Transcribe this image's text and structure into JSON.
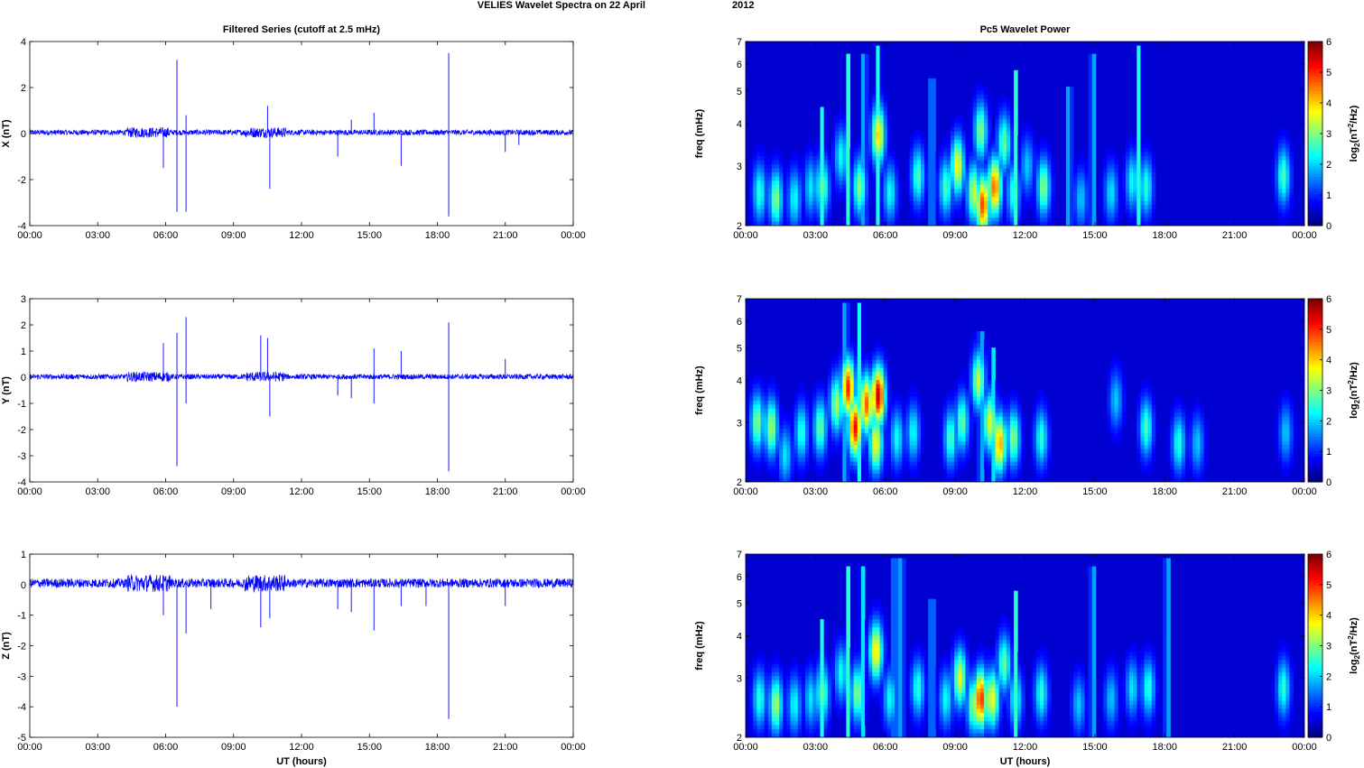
{
  "figure": {
    "suptitle_left": "VELIES Wavelet Spectra on 22 April",
    "suptitle_right": "2012"
  },
  "chart_data": [
    {
      "id": "x-series",
      "type": "line",
      "title": "Filtered Series (cutoff at 2.5 mHz)",
      "xlabel": "",
      "ylabel": "X (nT)",
      "xlim": [
        "00:00",
        "24:00"
      ],
      "ylim": [
        -4,
        4
      ],
      "xticks": [
        "00:00",
        "03:00",
        "06:00",
        "09:00",
        "12:00",
        "15:00",
        "18:00",
        "21:00",
        "00:00"
      ],
      "yticks": [
        4,
        2,
        0,
        -2,
        -4
      ],
      "color": "#0000ff",
      "background_noise_amplitude": 0.12,
      "spikes": [
        [
          5.9,
          -1.5
        ],
        [
          6.5,
          3.2
        ],
        [
          6.5,
          -3.4
        ],
        [
          6.9,
          0.8
        ],
        [
          6.9,
          -3.4
        ],
        [
          10.5,
          1.2
        ],
        [
          10.6,
          -2.4
        ],
        [
          13.6,
          -1.0
        ],
        [
          14.2,
          0.6
        ],
        [
          15.2,
          0.9
        ],
        [
          16.4,
          -1.4
        ],
        [
          18.5,
          3.5
        ],
        [
          18.5,
          -3.6
        ],
        [
          21.0,
          -0.8
        ],
        [
          21.6,
          -0.5
        ]
      ]
    },
    {
      "id": "y-series",
      "type": "line",
      "title": "",
      "xlabel": "",
      "ylabel": "Y (nT)",
      "xlim": [
        "00:00",
        "24:00"
      ],
      "ylim": [
        -4,
        3
      ],
      "xticks": [
        "00:00",
        "03:00",
        "06:00",
        "09:00",
        "12:00",
        "15:00",
        "18:00",
        "21:00",
        "00:00"
      ],
      "yticks": [
        3,
        2,
        1,
        0,
        -1,
        -2,
        -3,
        -4
      ],
      "color": "#0000ff",
      "background_noise_amplitude": 0.1,
      "spikes": [
        [
          5.9,
          1.3
        ],
        [
          6.5,
          1.7
        ],
        [
          6.5,
          -3.4
        ],
        [
          6.9,
          2.3
        ],
        [
          6.9,
          -1.0
        ],
        [
          10.2,
          1.6
        ],
        [
          10.5,
          1.5
        ],
        [
          10.6,
          -1.5
        ],
        [
          13.6,
          -0.7
        ],
        [
          14.2,
          -0.8
        ],
        [
          15.2,
          1.1
        ],
        [
          15.2,
          -1.0
        ],
        [
          16.4,
          1.0
        ],
        [
          18.5,
          2.1
        ],
        [
          18.5,
          -3.6
        ],
        [
          21.0,
          0.7
        ]
      ]
    },
    {
      "id": "z-series",
      "type": "line",
      "title": "",
      "xlabel": "UT (hours)",
      "ylabel": "Z (nT)",
      "xlim": [
        "00:00",
        "24:00"
      ],
      "ylim": [
        -5,
        1
      ],
      "xticks": [
        "00:00",
        "03:00",
        "06:00",
        "09:00",
        "12:00",
        "15:00",
        "18:00",
        "21:00",
        "00:00"
      ],
      "yticks": [
        1,
        0,
        -1,
        -2,
        -3,
        -4,
        -5
      ],
      "color": "#0000ff",
      "background_noise_amplitude": 0.15,
      "spikes": [
        [
          5.9,
          -1.0
        ],
        [
          6.5,
          -4.0
        ],
        [
          6.9,
          -1.6
        ],
        [
          8.0,
          -0.8
        ],
        [
          10.2,
          -1.4
        ],
        [
          10.6,
          -1.1
        ],
        [
          13.6,
          -0.8
        ],
        [
          14.2,
          -0.9
        ],
        [
          15.2,
          -1.5
        ],
        [
          16.4,
          -0.7
        ],
        [
          17.5,
          -0.7
        ],
        [
          18.5,
          -4.4
        ],
        [
          21.0,
          -0.7
        ]
      ]
    },
    {
      "id": "x-wavelet",
      "type": "heatmap",
      "title": "Pc5 Wavelet Power",
      "xlabel": "",
      "ylabel": "freq (mHz)",
      "colorbar_label": "log2(nT^2/Hz)",
      "xlim": [
        "00:00",
        "24:00"
      ],
      "ylim": [
        2,
        7
      ],
      "yscale": "log",
      "yticks": [
        2,
        3,
        4,
        5,
        6,
        7
      ],
      "xticks": [
        "00:00",
        "03:00",
        "06:00",
        "09:00",
        "12:00",
        "15:00",
        "18:00",
        "21:00",
        "00:00"
      ],
      "clim": [
        0,
        6
      ],
      "colorbar_ticks": [
        0,
        1,
        2,
        3,
        4,
        5,
        6
      ],
      "blobs": [
        [
          0.6,
          2.5,
          2.5,
          2.2
        ],
        [
          1.3,
          2.4,
          2.4,
          2.8
        ],
        [
          2.1,
          2.4,
          2.4,
          2.0
        ],
        [
          2.8,
          2.6,
          2.6,
          1.8
        ],
        [
          3.3,
          2.6,
          2.6,
          2.6
        ],
        [
          4.1,
          3.2,
          3.2,
          2.0
        ],
        [
          4.9,
          2.6,
          2.6,
          2.8
        ],
        [
          5.7,
          3.7,
          3.7,
          3.8
        ],
        [
          6.2,
          2.5,
          2.5,
          2.0
        ],
        [
          7.4,
          2.8,
          2.8,
          2.4
        ],
        [
          8.6,
          2.6,
          2.6,
          2.4
        ],
        [
          9.1,
          3.0,
          3.0,
          3.6
        ],
        [
          9.8,
          2.5,
          2.5,
          3.2
        ],
        [
          10.2,
          2.3,
          2.3,
          4.8
        ],
        [
          10.7,
          2.6,
          2.6,
          4.6
        ],
        [
          10.1,
          3.8,
          3.8,
          2.8
        ],
        [
          11.1,
          3.5,
          3.5,
          2.6
        ],
        [
          11.5,
          2.5,
          2.5,
          2.2
        ],
        [
          12.1,
          3.0,
          3.0,
          1.6
        ],
        [
          12.8,
          2.6,
          2.6,
          2.8
        ],
        [
          14.4,
          2.4,
          2.4,
          1.6
        ],
        [
          15.7,
          2.5,
          2.5,
          1.8
        ],
        [
          16.6,
          2.7,
          2.7,
          2.0
        ],
        [
          17.2,
          2.6,
          2.6,
          2.2
        ],
        [
          23.1,
          2.8,
          2.8,
          2.4
        ]
      ],
      "streaks": [
        [
          3.3,
          4.5
        ],
        [
          4.4,
          6.5
        ],
        [
          5.1,
          6.5
        ],
        [
          5.7,
          6.9
        ],
        [
          8.0,
          5.5
        ],
        [
          11.6,
          5.8
        ],
        [
          13.9,
          5.2
        ],
        [
          14.9,
          6.5
        ],
        [
          16.9,
          6.8
        ]
      ]
    },
    {
      "id": "y-wavelet",
      "type": "heatmap",
      "title": "",
      "xlabel": "",
      "ylabel": "freq (mHz)",
      "colorbar_label": "log2(nT^2/Hz)",
      "xlim": [
        "00:00",
        "24:00"
      ],
      "ylim": [
        2,
        7
      ],
      "yscale": "log",
      "yticks": [
        2,
        3,
        4,
        5,
        6,
        7
      ],
      "xticks": [
        "00:00",
        "03:00",
        "06:00",
        "09:00",
        "12:00",
        "15:00",
        "18:00",
        "21:00",
        "00:00"
      ],
      "clim": [
        0,
        6
      ],
      "colorbar_label_note": "",
      "colorbar_ticks": [
        0,
        1,
        2,
        3,
        4,
        5,
        6
      ],
      "blobs": [
        [
          0.5,
          3.0,
          3.0,
          2.8
        ],
        [
          1.1,
          2.9,
          2.9,
          3.0
        ],
        [
          1.7,
          2.4,
          2.4,
          1.8
        ],
        [
          2.4,
          2.8,
          2.8,
          2.2
        ],
        [
          3.2,
          2.9,
          2.9,
          2.6
        ],
        [
          3.9,
          3.4,
          3.4,
          3.0
        ],
        [
          4.4,
          3.8,
          3.8,
          5.0
        ],
        [
          4.7,
          2.9,
          2.9,
          5.2
        ],
        [
          5.2,
          3.4,
          3.4,
          4.6
        ],
        [
          5.7,
          3.6,
          3.6,
          5.6
        ],
        [
          5.6,
          2.6,
          2.6,
          3.6
        ],
        [
          6.5,
          2.7,
          2.7,
          2.0
        ],
        [
          7.2,
          2.8,
          2.8,
          2.0
        ],
        [
          8.8,
          2.7,
          2.7,
          2.4
        ],
        [
          9.3,
          3.0,
          3.0,
          2.6
        ],
        [
          10.0,
          4.0,
          4.0,
          3.2
        ],
        [
          10.5,
          3.0,
          3.0,
          3.4
        ],
        [
          10.9,
          2.6,
          2.6,
          4.2
        ],
        [
          11.5,
          2.7,
          2.7,
          2.8
        ],
        [
          12.7,
          2.7,
          2.7,
          2.2
        ],
        [
          15.9,
          3.5,
          3.5,
          1.6
        ],
        [
          17.2,
          2.9,
          2.9,
          2.4
        ],
        [
          18.6,
          2.6,
          2.6,
          2.2
        ],
        [
          19.4,
          2.6,
          2.6,
          1.6
        ],
        [
          23.2,
          2.8,
          2.8,
          1.6
        ]
      ],
      "streaks": [
        [
          4.3,
          6.8
        ],
        [
          4.9,
          6.9
        ],
        [
          10.1,
          5.6
        ],
        [
          10.6,
          5.0
        ]
      ]
    },
    {
      "id": "z-wavelet",
      "type": "heatmap",
      "title": "",
      "xlabel": "UT (hours)",
      "ylabel": "freq (mHz)",
      "colorbar_label": "log2(nT^2/Hz)",
      "xlim": [
        "00:00",
        "24:00"
      ],
      "ylim": [
        2,
        7
      ],
      "yscale": "log",
      "yticks": [
        2,
        3,
        4,
        5,
        6,
        7
      ],
      "xticks": [
        "00:00",
        "03:00",
        "06:00",
        "09:00",
        "12:00",
        "15:00",
        "18:00",
        "21:00",
        "00:00"
      ],
      "clim": [
        0,
        6
      ],
      "colorbar_ticks": [
        0,
        1,
        2,
        3,
        4,
        5,
        6
      ],
      "blobs": [
        [
          0.6,
          2.6,
          2.6,
          2.2
        ],
        [
          1.3,
          2.5,
          2.5,
          3.0
        ],
        [
          2.1,
          2.5,
          2.5,
          2.0
        ],
        [
          2.8,
          2.6,
          2.6,
          1.8
        ],
        [
          3.3,
          2.7,
          2.7,
          2.6
        ],
        [
          4.1,
          3.1,
          3.1,
          2.0
        ],
        [
          4.8,
          2.7,
          2.7,
          2.8
        ],
        [
          5.6,
          3.6,
          3.6,
          3.8
        ],
        [
          6.2,
          2.6,
          2.6,
          2.0
        ],
        [
          7.4,
          2.8,
          2.8,
          2.2
        ],
        [
          8.6,
          2.6,
          2.6,
          2.0
        ],
        [
          9.2,
          3.0,
          3.0,
          3.4
        ],
        [
          9.8,
          2.5,
          2.5,
          3.0
        ],
        [
          10.1,
          2.6,
          2.6,
          5.0
        ],
        [
          10.6,
          2.6,
          2.6,
          3.6
        ],
        [
          11.1,
          3.3,
          3.3,
          2.6
        ],
        [
          11.6,
          2.6,
          2.6,
          2.2
        ],
        [
          12.7,
          2.7,
          2.7,
          2.2
        ],
        [
          14.3,
          2.5,
          2.5,
          1.6
        ],
        [
          15.7,
          2.6,
          2.6,
          1.6
        ],
        [
          16.6,
          2.8,
          2.8,
          1.8
        ],
        [
          17.3,
          2.8,
          2.8,
          2.2
        ],
        [
          23.1,
          2.8,
          2.8,
          2.2
        ]
      ],
      "streaks": [
        [
          3.3,
          4.5
        ],
        [
          4.4,
          6.5
        ],
        [
          5.0,
          6.5
        ],
        [
          6.4,
          6.9
        ],
        [
          6.7,
          6.9
        ],
        [
          8.0,
          5.2
        ],
        [
          11.6,
          5.4
        ],
        [
          14.9,
          6.5
        ],
        [
          18.1,
          6.9
        ]
      ]
    }
  ]
}
